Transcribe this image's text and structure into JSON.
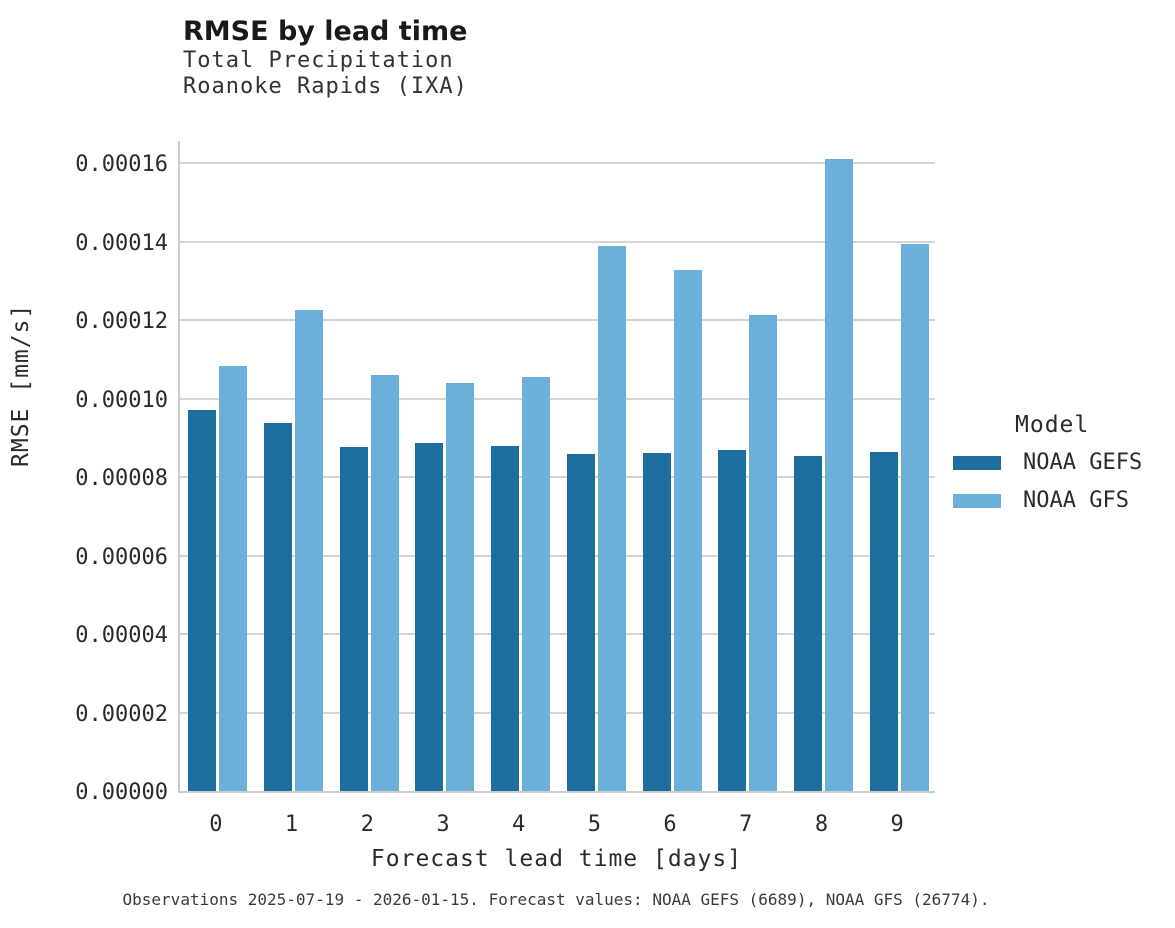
{
  "chart_data": {
    "type": "bar",
    "title": "RMSE by lead time",
    "subtitle_lines": [
      "Total Precipitation",
      "Roanoke Rapids (IXA)"
    ],
    "xlabel": "Forecast lead time [days]",
    "ylabel": "RMSE [mm/s]",
    "categories": [
      "0",
      "1",
      "2",
      "3",
      "4",
      "5",
      "6",
      "7",
      "8",
      "9"
    ],
    "series": [
      {
        "name": "NOAA GEFS",
        "color": "#1d6d9e",
        "values": [
          9.7e-05,
          9.37e-05,
          8.77e-05,
          8.86e-05,
          8.79e-05,
          8.58e-05,
          8.61e-05,
          8.68e-05,
          8.54e-05,
          8.64e-05
        ]
      },
      {
        "name": "NOAA GFS",
        "color": "#6cb0d9",
        "values": [
          0.0001082,
          0.0001226,
          0.000106,
          0.000104,
          0.0001056,
          0.0001388,
          0.0001328,
          0.0001213,
          0.000161,
          0.0001394
        ]
      }
    ],
    "ylim": [
      0,
      0.000167
    ],
    "ytick_step": 2e-05,
    "ytick_labels": [
      "0.00000",
      "0.00002",
      "0.00004",
      "0.00006",
      "0.00008",
      "0.00010",
      "0.00012",
      "0.00014",
      "0.00016"
    ],
    "legend": {
      "title": "Model",
      "position": "right"
    },
    "grid": "horizontal"
  },
  "colors": {
    "series_dark": "#1d6d9e",
    "series_light": "#6cb0d9",
    "gridline": "#d4d4d4",
    "axis_line": "#cccccc",
    "text": "#2b2b2b"
  },
  "footer": {
    "text": "Observations 2025-07-19 - 2026-01-15. Forecast values: NOAA GEFS (6689), NOAA GFS (26774)."
  }
}
